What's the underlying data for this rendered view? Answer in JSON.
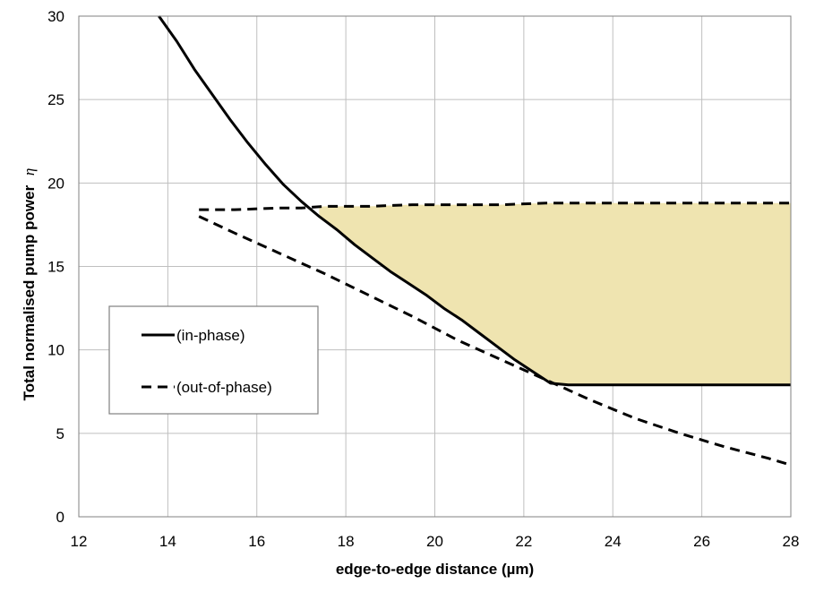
{
  "chart_data": {
    "type": "line",
    "xlabel": "edge-to-edge distance (µm)",
    "ylabel": "Total normalised pump power",
    "ylabel_symbol": "η",
    "xlim": [
      12,
      28
    ],
    "ylim": [
      0,
      30
    ],
    "xticks": [
      12,
      14,
      16,
      18,
      20,
      22,
      24,
      26,
      28
    ],
    "yticks": [
      0,
      5,
      10,
      15,
      20,
      25,
      30
    ],
    "grid": true,
    "legend_position": "left",
    "series": [
      {
        "name": "(in-phase)",
        "style": "solid",
        "color": "#000000",
        "x": [
          13.8,
          14.2,
          14.6,
          15.0,
          15.4,
          15.8,
          16.2,
          16.6,
          17.0,
          17.4,
          17.8,
          18.2,
          18.6,
          19.0,
          19.4,
          19.8,
          20.2,
          20.6,
          21.0,
          21.4,
          21.8,
          22.2,
          22.6,
          23.0,
          24.0,
          25.0,
          26.0,
          27.0,
          28.0
        ],
        "y": [
          30.0,
          28.5,
          26.8,
          25.3,
          23.8,
          22.4,
          21.1,
          19.9,
          18.9,
          18.0,
          17.2,
          16.3,
          15.5,
          14.7,
          14.0,
          13.3,
          12.5,
          11.8,
          11.0,
          10.2,
          9.4,
          8.7,
          8.0,
          7.9,
          7.9,
          7.9,
          7.9,
          7.9,
          7.9
        ]
      },
      {
        "name": "(out-of-phase)",
        "style": "dashed",
        "color": "#000000",
        "segments": [
          {
            "x": [
              14.7,
              15.5,
              16.5,
              17.0,
              17.5,
              18.5,
              19.5,
              20.5,
              21.5,
              22.5,
              23.5,
              24.5,
              25.5,
              26.5,
              27.5,
              28.0
            ],
            "y": [
              18.4,
              18.4,
              18.5,
              18.5,
              18.6,
              18.6,
              18.7,
              18.7,
              18.7,
              18.8,
              18.8,
              18.8,
              18.8,
              18.8,
              18.8,
              18.8
            ]
          },
          {
            "x": [
              14.7,
              15.5,
              16.5,
              17.5,
              18.5,
              19.5,
              20.5,
              21.5,
              22.5,
              23.5,
              24.5,
              25.5,
              26.5,
              27.5,
              28.0
            ],
            "y": [
              18.0,
              17.0,
              15.8,
              14.6,
              13.3,
              12.0,
              10.6,
              9.4,
              8.2,
              7.0,
              5.9,
              5.0,
              4.2,
              3.5,
              3.1
            ]
          }
        ]
      }
    ],
    "shaded_region": {
      "color": "#efe4b0",
      "x_start": 17.4,
      "x_end": 28.0
    }
  }
}
